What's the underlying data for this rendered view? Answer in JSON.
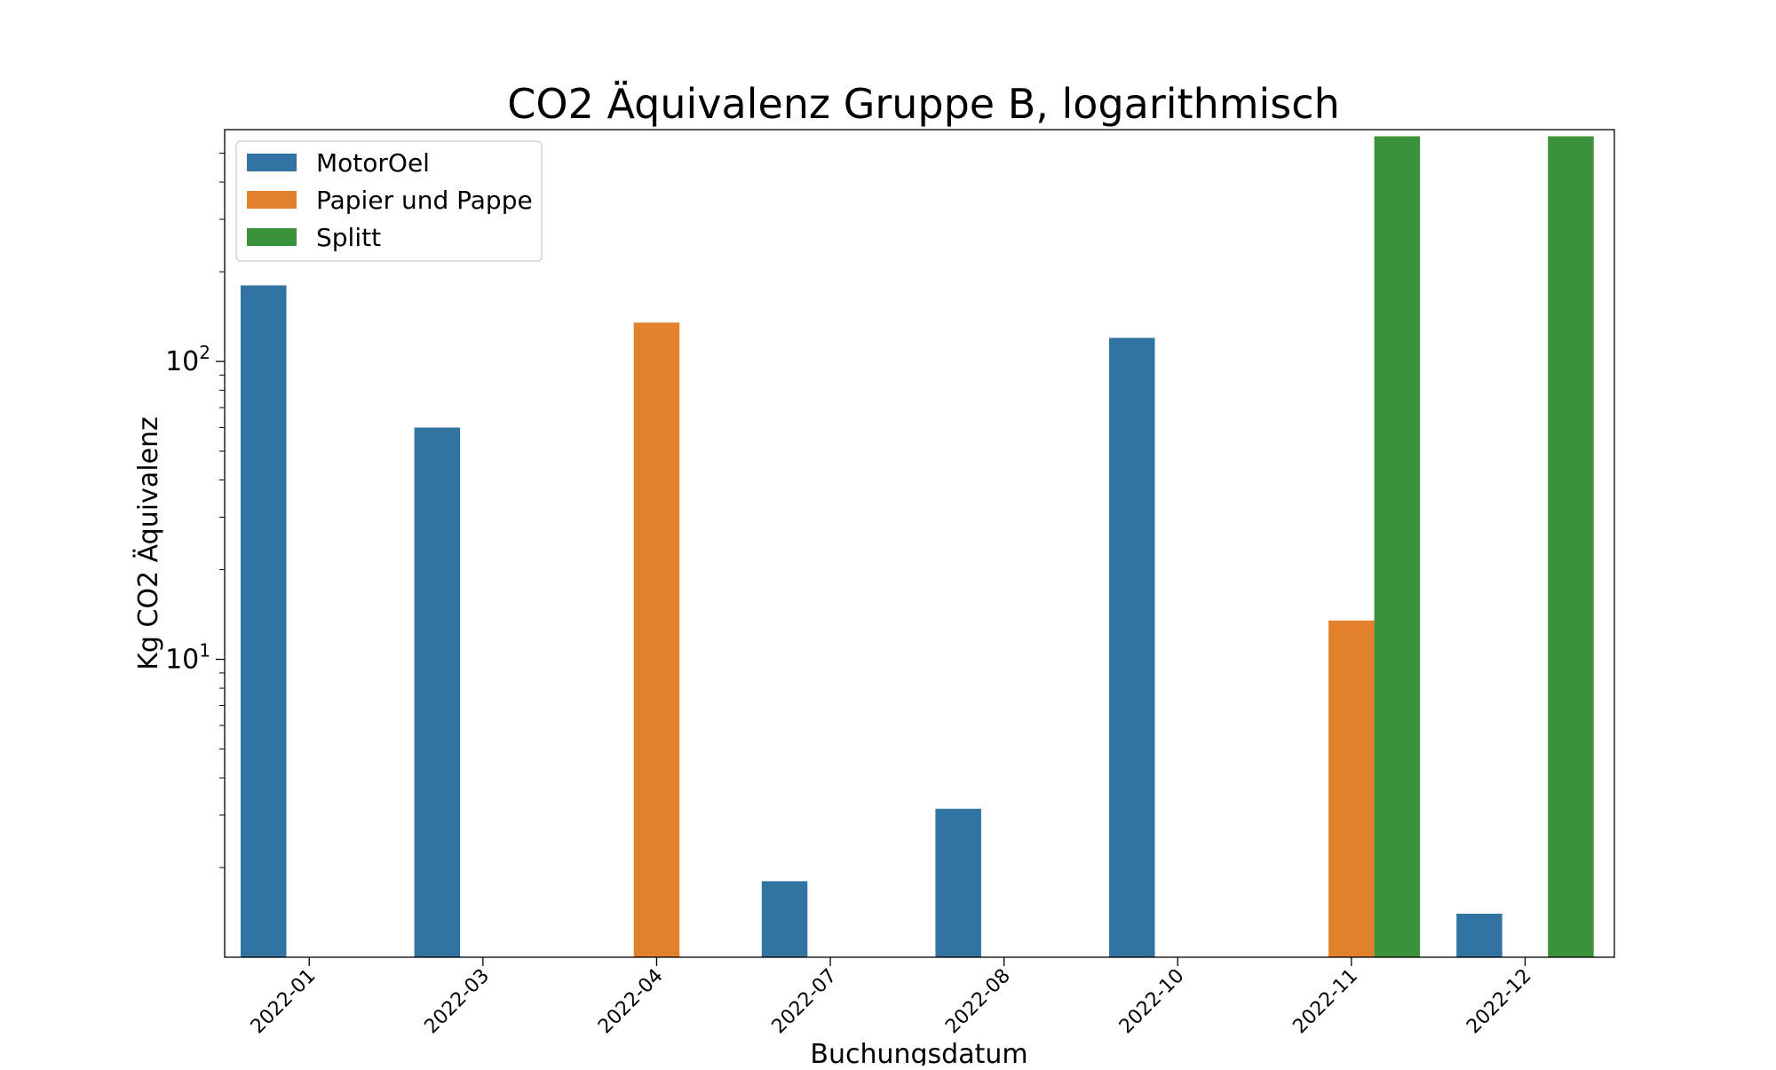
{
  "chart_data": {
    "type": "bar",
    "title": "CO2 Äquivalenz Gruppe B, logarithmisch",
    "xlabel": "Buchungsdatum",
    "ylabel": "Kg CO2 Äquivalenz",
    "yscale": "log",
    "ylim": [
      1.0,
      600
    ],
    "yticks": [
      {
        "value": 10,
        "label_base": "10",
        "label_exp": "1"
      },
      {
        "value": 100,
        "label_base": "10",
        "label_exp": "2"
      }
    ],
    "categories": [
      "2022-01",
      "2022-03",
      "2022-04",
      "2022-07",
      "2022-08",
      "2022-10",
      "2022-11",
      "2022-12"
    ],
    "series": [
      {
        "name": "MotorOel",
        "color": "#3274a1",
        "values": [
          180,
          60,
          null,
          1.8,
          3.15,
          120,
          null,
          1.4
        ]
      },
      {
        "name": "Papier und Pappe",
        "color": "#e1812c",
        "values": [
          null,
          null,
          135,
          null,
          null,
          null,
          13.5,
          null
        ]
      },
      {
        "name": "Splitt",
        "color": "#3a923a",
        "values": [
          null,
          null,
          null,
          null,
          null,
          null,
          570,
          570
        ]
      }
    ],
    "legend_position": "upper-left",
    "grid": false
  }
}
